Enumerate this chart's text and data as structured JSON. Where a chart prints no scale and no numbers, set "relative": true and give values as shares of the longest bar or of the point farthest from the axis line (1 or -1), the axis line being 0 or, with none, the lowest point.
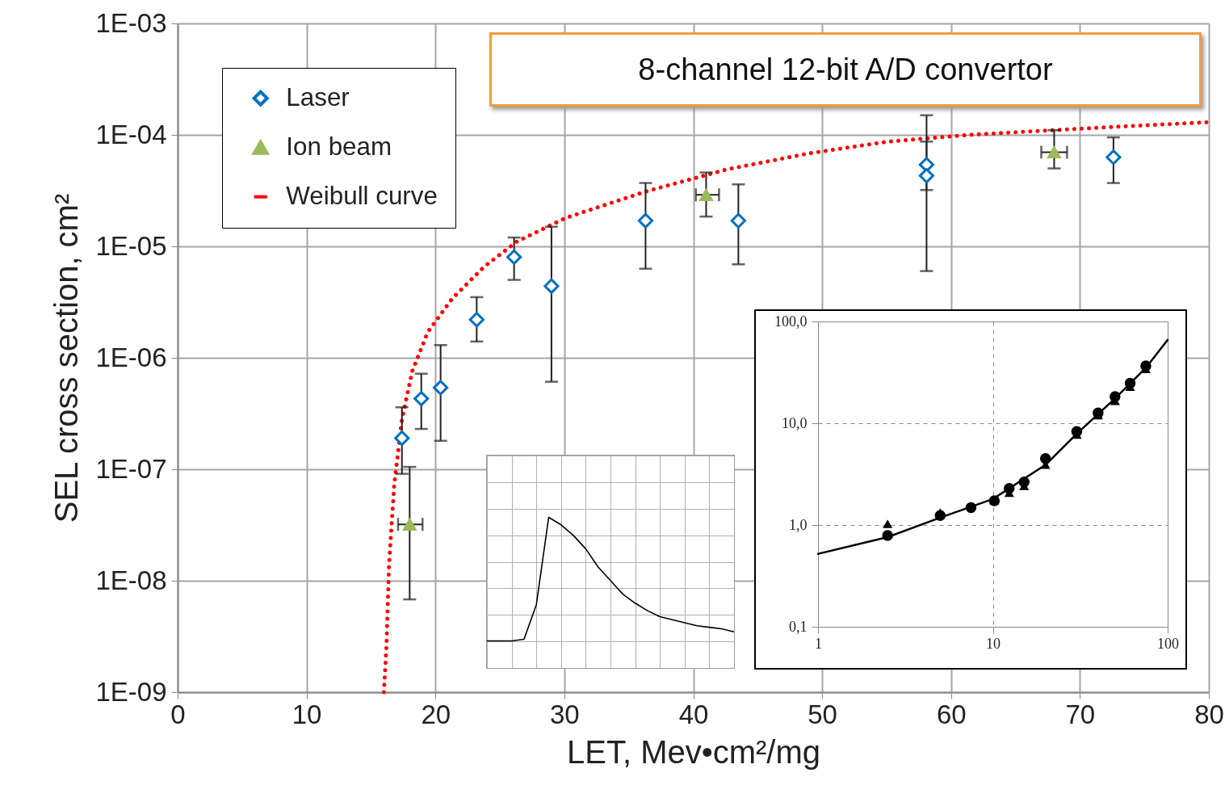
{
  "chart_data": [
    {
      "type": "scatter",
      "xlabel": "LET, Mev•cm²/mg",
      "ylabel": "SEL cross section, cm²",
      "annotations": [
        "8-channel 12-bit A/D convertor"
      ],
      "log": "y",
      "grid": true,
      "legend": "top left",
      "xlim": [
        0,
        80
      ],
      "xticks": [
        0,
        10,
        20,
        30,
        40,
        50,
        60,
        70,
        80
      ],
      "ylim": [
        1e-09,
        0.001
      ],
      "yticks": [
        {
          "value": 1e-09,
          "label": "1E-09"
        },
        {
          "value": 1e-08,
          "label": "1E-08"
        },
        {
          "value": 1e-07,
          "label": "1E-07"
        },
        {
          "value": 1e-06,
          "label": "1E-06"
        },
        {
          "value": 1e-05,
          "label": "1E-05"
        },
        {
          "value": 0.0001,
          "label": "1E-04"
        },
        {
          "value": 0.001,
          "label": "1E-03"
        }
      ],
      "series": [
        {
          "name": "Laser",
          "marker": "diamond",
          "color": "#0070c0",
          "x": [
            17.4,
            18.9,
            20.4,
            23.2,
            26.1,
            29.0,
            36.3,
            43.5,
            58.1,
            58.1,
            72.6
          ],
          "values": [
            1.9e-07,
            4.3e-07,
            5.4e-07,
            2.2e-06,
            8e-06,
            4.4e-06,
            1.7e-05,
            1.7e-05,
            5.4e-05,
            4.3e-05,
            6.3e-05
          ],
          "errors": [
            [
              9.1e-08,
              3.6e-07
            ],
            [
              2.3e-07,
              7.2e-07
            ],
            [
              1.8e-07,
              1.3e-06
            ],
            [
              1.4e-06,
              3.5e-06
            ],
            [
              5e-06,
              1.2e-05
            ],
            [
              6.1e-07,
              1.5e-05
            ],
            [
              6.3e-06,
              3.7e-05
            ],
            [
              6.9e-06,
              3.6e-05
            ],
            [
              6e-06,
              0.00015
            ],
            [
              3.2e-05,
              8.7e-05
            ],
            [
              3.7e-05,
              9.5e-05
            ]
          ]
        },
        {
          "name": "Ion beam",
          "marker": "triangle",
          "color": "#9bbb59",
          "x": [
            18.0,
            41.0,
            68.0
          ],
          "values": [
            3.2e-08,
            2.9e-05,
            7e-05
          ],
          "errors": [
            [
              6.8e-09,
              1.05e-07
            ],
            [
              1.85e-05,
              4.6e-05
            ],
            [
              5e-05,
              0.00011
            ]
          ],
          "xerrors": [
            [
              17.1,
              19.0
            ],
            [
              40.2,
              42.0
            ],
            [
              67.0,
              69.0
            ]
          ]
        },
        {
          "name": "Weibull curve",
          "type": "line",
          "line_style": "dotted",
          "color": "#ff0000",
          "x": [
            16.0,
            16.2,
            16.4,
            16.8,
            17.4,
            18.2,
            19.4,
            21.3,
            23.8,
            26.3,
            30.1,
            36.3,
            42.6,
            48.9,
            55.1,
            61.4,
            67.7,
            73.9,
            80.0
          ],
          "values": [
            1e-09,
            2.6e-09,
            1.4e-08,
            7.2e-08,
            2.8e-07,
            7.6e-07,
            1.7e-06,
            3.4e-06,
            6.6e-06,
            1.1e-05,
            1.8e-05,
            3.1e-05,
            4.9e-05,
            6.8e-05,
            8.7e-05,
            0.0001,
            0.00011,
            0.00012,
            0.00013
          ]
        }
      ]
    },
    {
      "type": "scatter",
      "log": "xy",
      "grid": true,
      "xlim": [
        1,
        100
      ],
      "xticks": [
        1,
        10,
        100
      ],
      "ylim": [
        0.1,
        100
      ],
      "yticks": [
        {
          "value": 0.1,
          "label": "0,1"
        },
        {
          "value": 1,
          "label": "1,0"
        },
        {
          "value": 10,
          "label": "10,0"
        },
        {
          "value": 100,
          "label": "100,0"
        }
      ],
      "series": [
        {
          "marker": "circle",
          "color": "#000000",
          "x": [
            2.5,
            5.0,
            7.5,
            10.2,
            12.4,
            15.1,
            20.0,
            30.2,
            40,
            50,
            61,
            75
          ],
          "values": [
            0.79,
            1.24,
            1.48,
            1.73,
            2.29,
            2.65,
            4.5,
            8.3,
            12.6,
            18.3,
            24.7,
            36.6
          ]
        },
        {
          "marker": "triangle",
          "color": "#000000",
          "x": [
            2.5,
            5.0,
            10.2,
            12.4,
            15.1,
            20.0,
            30.2,
            40,
            50,
            61,
            75
          ],
          "values": [
            1.02,
            1.32,
            1.73,
            2.06,
            2.41,
            3.9,
            7.7,
            11.9,
            16.5,
            22.7,
            33.9
          ]
        },
        {
          "type": "line",
          "line_style": "solid",
          "color": "#000000",
          "x": [
            1,
            2.5,
            5,
            10,
            20,
            30,
            50,
            75,
            100
          ],
          "values": [
            0.52,
            0.76,
            1.18,
            1.8,
            3.9,
            7.8,
            17.5,
            35,
            66
          ]
        }
      ]
    },
    {
      "type": "line",
      "relative": true,
      "grid": true,
      "categories": [
        null,
        null,
        null,
        null,
        null,
        null,
        null,
        null,
        null,
        null,
        null,
        null,
        null,
        null,
        null,
        null,
        null,
        null,
        null,
        null,
        null
      ],
      "series": [
        {
          "line_style": "solid",
          "color": "#000000",
          "values": [
            0.18,
            0.18,
            0.18,
            0.19,
            0.42,
            1.0,
            0.95,
            0.88,
            0.79,
            0.67,
            0.58,
            0.49,
            0.43,
            0.38,
            0.34,
            0.32,
            0.3,
            0.28,
            0.27,
            0.26,
            0.24
          ]
        }
      ]
    }
  ]
}
